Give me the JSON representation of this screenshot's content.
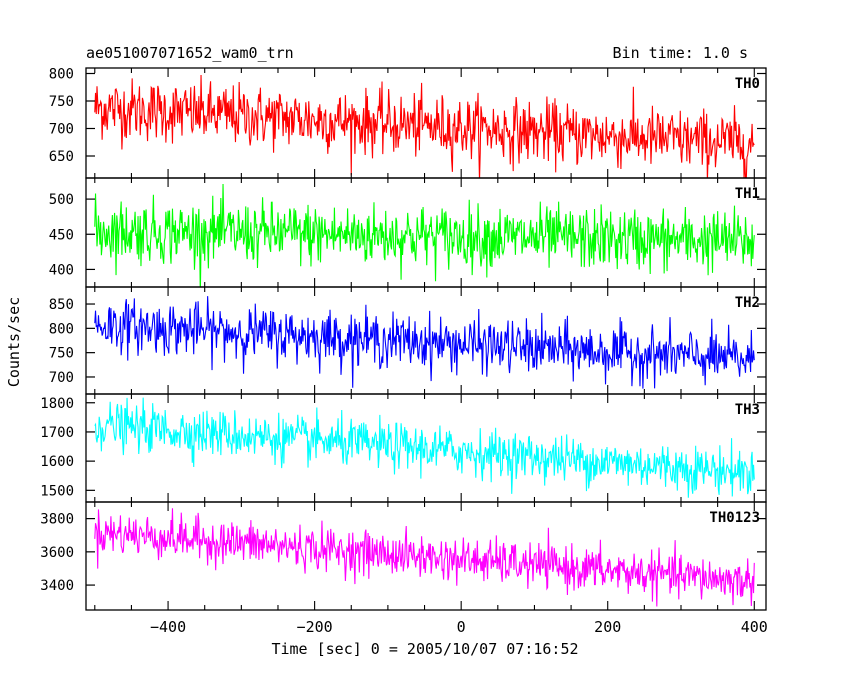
{
  "header": {
    "title": "ae051007071652_wam0_trn",
    "bin_time": "Bin time: 1.0 s"
  },
  "chart_data": {
    "type": "line",
    "xlabel": "Time [sec] 0 = 2005/10/07 07:16:52",
    "ylabel": "Counts/sec",
    "xlim": [
      -512,
      416
    ],
    "xticks": [
      -400,
      -200,
      0,
      200,
      400
    ],
    "xtick_labels": [
      "−400",
      "−200",
      "0",
      "200",
      "400"
    ],
    "x_start": -500,
    "x_end": 400,
    "bin_size": 1.0,
    "grid": false,
    "panels": [
      {
        "name": "TH0",
        "color": "#ff0000",
        "ylim": [
          610,
          810
        ],
        "yticks": [
          650,
          700,
          750,
          800
        ],
        "trend_start": 738,
        "trend_end": 672,
        "noise_amplitude": 28
      },
      {
        "name": "TH1",
        "color": "#00ff00",
        "ylim": [
          375,
          530
        ],
        "yticks": [
          400,
          450,
          500
        ],
        "trend_start": 455,
        "trend_end": 440,
        "noise_amplitude": 22
      },
      {
        "name": "TH2",
        "color": "#0000ff",
        "ylim": [
          665,
          885
        ],
        "yticks": [
          700,
          750,
          800,
          850
        ],
        "trend_start": 808,
        "trend_end": 735,
        "noise_amplitude": 27
      },
      {
        "name": "TH3",
        "color": "#00ffff",
        "ylim": [
          1460,
          1830
        ],
        "yticks": [
          1500,
          1600,
          1700,
          1800
        ],
        "trend_start": 1725,
        "trend_end": 1560,
        "noise_amplitude": 40
      },
      {
        "name": "TH0123",
        "color": "#ff00ff",
        "ylim": [
          3250,
          3900
        ],
        "yticks": [
          3400,
          3600,
          3800
        ],
        "trend_start": 3720,
        "trend_end": 3420,
        "noise_amplitude": 65
      }
    ]
  }
}
